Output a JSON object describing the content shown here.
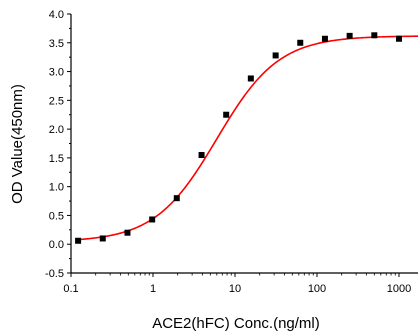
{
  "chart_data": {
    "type": "scatter",
    "title": "",
    "xlabel": "ACE2(hFC) Conc.(ng/ml)",
    "ylabel": "OD Value(450nm)",
    "x_scale": "log",
    "xlim": [
      0.1,
      1800
    ],
    "ylim": [
      -0.5,
      4.0
    ],
    "x_ticks": [
      0.1,
      1,
      10,
      100,
      1000
    ],
    "x_tick_labels": [
      "0.1",
      "1",
      "10",
      "100",
      "1000"
    ],
    "y_ticks": [
      -0.5,
      0.0,
      0.5,
      1.0,
      1.5,
      2.0,
      2.5,
      3.0,
      3.5,
      4.0
    ],
    "y_tick_labels": [
      "-0.5",
      "0.0",
      "0.5",
      "1.0",
      "1.5",
      "2.0",
      "2.5",
      "3.0",
      "3.5",
      "4.0"
    ],
    "grid": false,
    "series": [
      {
        "marker": "square",
        "color": "#000000",
        "x": [
          0.122,
          0.244,
          0.488,
          0.977,
          1.95,
          3.91,
          7.81,
          15.6,
          31.3,
          62.5,
          125,
          250,
          500,
          1000
        ],
        "y": [
          0.06,
          0.1,
          0.2,
          0.43,
          0.8,
          1.55,
          2.25,
          2.88,
          3.28,
          3.5,
          3.57,
          3.62,
          3.63,
          3.57
        ]
      }
    ],
    "fit": {
      "color": "#ff0000",
      "model": "4PL",
      "bottom": 0.04,
      "top": 3.62,
      "ec50": 6.0,
      "hill": 1.15
    }
  }
}
